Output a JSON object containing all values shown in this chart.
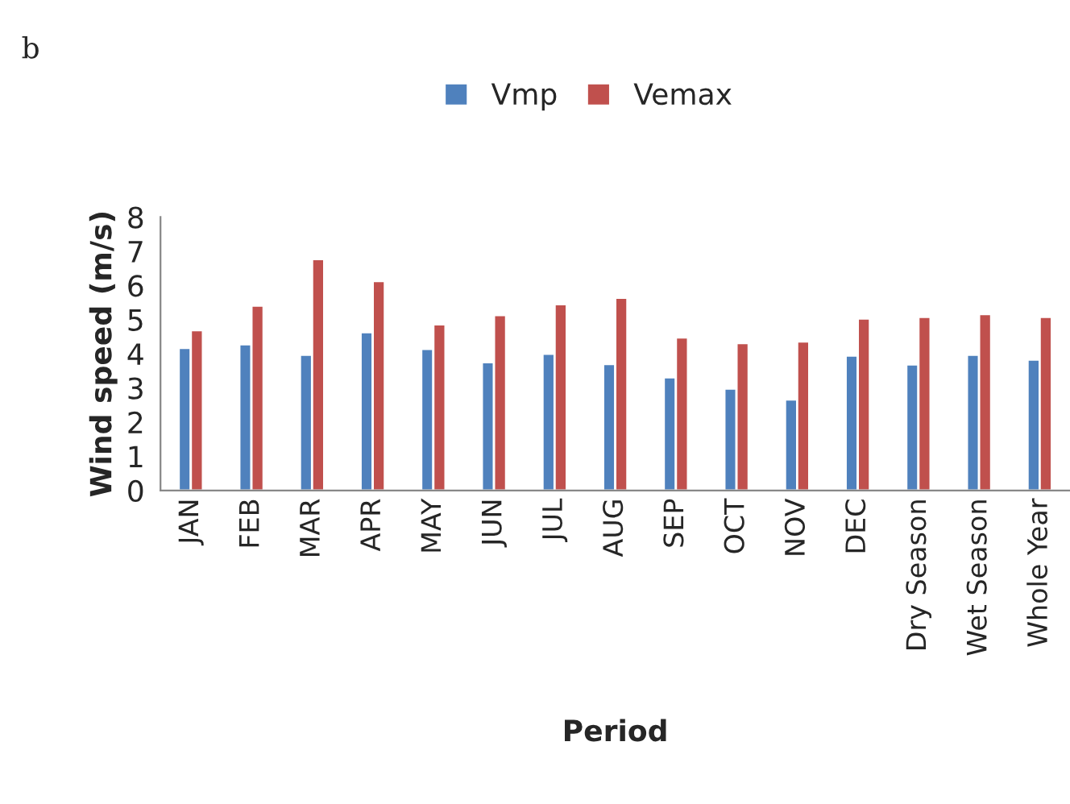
{
  "chart_data": {
    "type": "bar",
    "title": "b",
    "xlabel": "Period",
    "ylabel": "Wind speed (m/s)",
    "categories": [
      "JAN",
      "FEB",
      "MAR",
      "APR",
      "MAY",
      "JUN",
      "JUL",
      "AUG",
      "SEP",
      "OCT",
      "NOV",
      "DEC",
      "Dry Season",
      "Wet Season",
      "Whole Year"
    ],
    "series": [
      {
        "name": "Vmp",
        "color": "#4f81bd",
        "values": [
          4.17,
          4.28,
          3.97,
          4.63,
          4.14,
          3.75,
          4.0,
          3.7,
          3.31,
          2.98,
          2.66,
          3.95,
          3.69,
          3.97,
          3.83
        ]
      },
      {
        "name": "Vemax",
        "color": "#c0504d",
        "values": [
          4.69,
          5.41,
          6.77,
          6.13,
          4.86,
          5.13,
          5.45,
          5.64,
          4.48,
          4.31,
          4.36,
          5.03,
          5.08,
          5.16,
          5.08
        ]
      }
    ],
    "ylim": [
      0,
      8
    ],
    "yticks": [
      0,
      1,
      2,
      3,
      4,
      5,
      6,
      7,
      8
    ],
    "grid": false,
    "legend": "top"
  }
}
